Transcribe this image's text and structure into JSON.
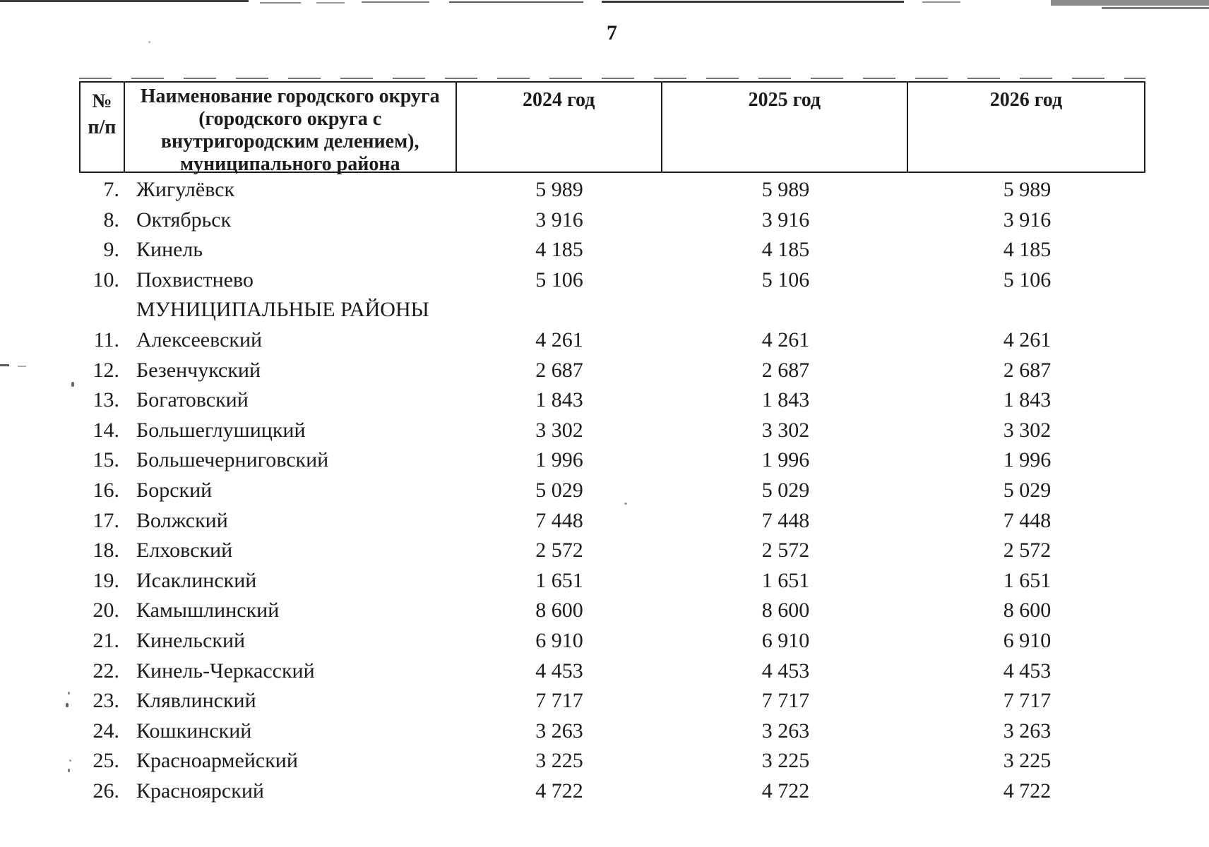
{
  "page": {
    "number": "7"
  },
  "colors": {
    "ink": "#1c1c1c",
    "paper": "#ffffff"
  },
  "table": {
    "header": {
      "num": "№\nп/п",
      "name": "Наименование городского округа\n(городского округа с\nвнутригородским делением),\nмуниципального района",
      "year_2024": "2024 год",
      "year_2025": "2025 год",
      "year_2026": "2026 год"
    },
    "rows": [
      {
        "num": "7.",
        "name": "Жигулёвск",
        "y2024": "5 989",
        "y2025": "5 989",
        "y2026": "5 989"
      },
      {
        "num": "8.",
        "name": "Октябрьск",
        "y2024": "3 916",
        "y2025": "3 916",
        "y2026": "3 916"
      },
      {
        "num": "9.",
        "name": "Кинель",
        "y2024": "4 185",
        "y2025": "4 185",
        "y2026": "4 185"
      },
      {
        "num": "10.",
        "name": "Похвистнево",
        "y2024": "5 106",
        "y2025": "5 106",
        "y2026": "5 106"
      },
      {
        "section": true,
        "name": "МУНИЦИПАЛЬНЫЕ РАЙОНЫ"
      },
      {
        "num": "11.",
        "name": "Алексеевский",
        "y2024": "4 261",
        "y2025": "4 261",
        "y2026": "4 261"
      },
      {
        "num": "12.",
        "name": "Безенчукский",
        "y2024": "2 687",
        "y2025": "2 687",
        "y2026": "2 687"
      },
      {
        "num": "13.",
        "name": "Богатовский",
        "y2024": "1 843",
        "y2025": "1 843",
        "y2026": "1 843"
      },
      {
        "num": "14.",
        "name": "Большеглушицкий",
        "y2024": "3 302",
        "y2025": "3 302",
        "y2026": "3 302"
      },
      {
        "num": "15.",
        "name": "Большечерниговский",
        "y2024": "1 996",
        "y2025": "1 996",
        "y2026": "1 996"
      },
      {
        "num": "16.",
        "name": "Борский",
        "y2024": "5 029",
        "y2025": "5 029",
        "y2026": "5 029"
      },
      {
        "num": "17.",
        "name": "Волжский",
        "y2024": "7 448",
        "y2025": "7 448",
        "y2026": "7 448"
      },
      {
        "num": "18.",
        "name": "Елховский",
        "y2024": "2 572",
        "y2025": "2 572",
        "y2026": "2 572"
      },
      {
        "num": "19.",
        "name": "Исаклинский",
        "y2024": "1 651",
        "y2025": "1 651",
        "y2026": "1 651"
      },
      {
        "num": "20.",
        "name": "Камышлинский",
        "y2024": "8 600",
        "y2025": "8 600",
        "y2026": "8 600"
      },
      {
        "num": "21.",
        "name": "Кинельский",
        "y2024": "6 910",
        "y2025": "6 910",
        "y2026": "6 910"
      },
      {
        "num": "22.",
        "name": "Кинель-Черкасский",
        "y2024": "4 453",
        "y2025": "4 453",
        "y2026": "4 453"
      },
      {
        "num": "23.",
        "name": "Клявлинский",
        "y2024": "7 717",
        "y2025": "7 717",
        "y2026": "7 717"
      },
      {
        "num": "24.",
        "name": "Кошкинский",
        "y2024": "3 263",
        "y2025": "3 263",
        "y2026": "3 263"
      },
      {
        "num": "25.",
        "name": "Красноармейский",
        "y2024": "3 225",
        "y2025": "3 225",
        "y2026": "3 225"
      },
      {
        "num": "26.",
        "name": "Красноярский",
        "y2024": "4 722",
        "y2025": "4 722",
        "y2026": "4 722"
      }
    ]
  }
}
